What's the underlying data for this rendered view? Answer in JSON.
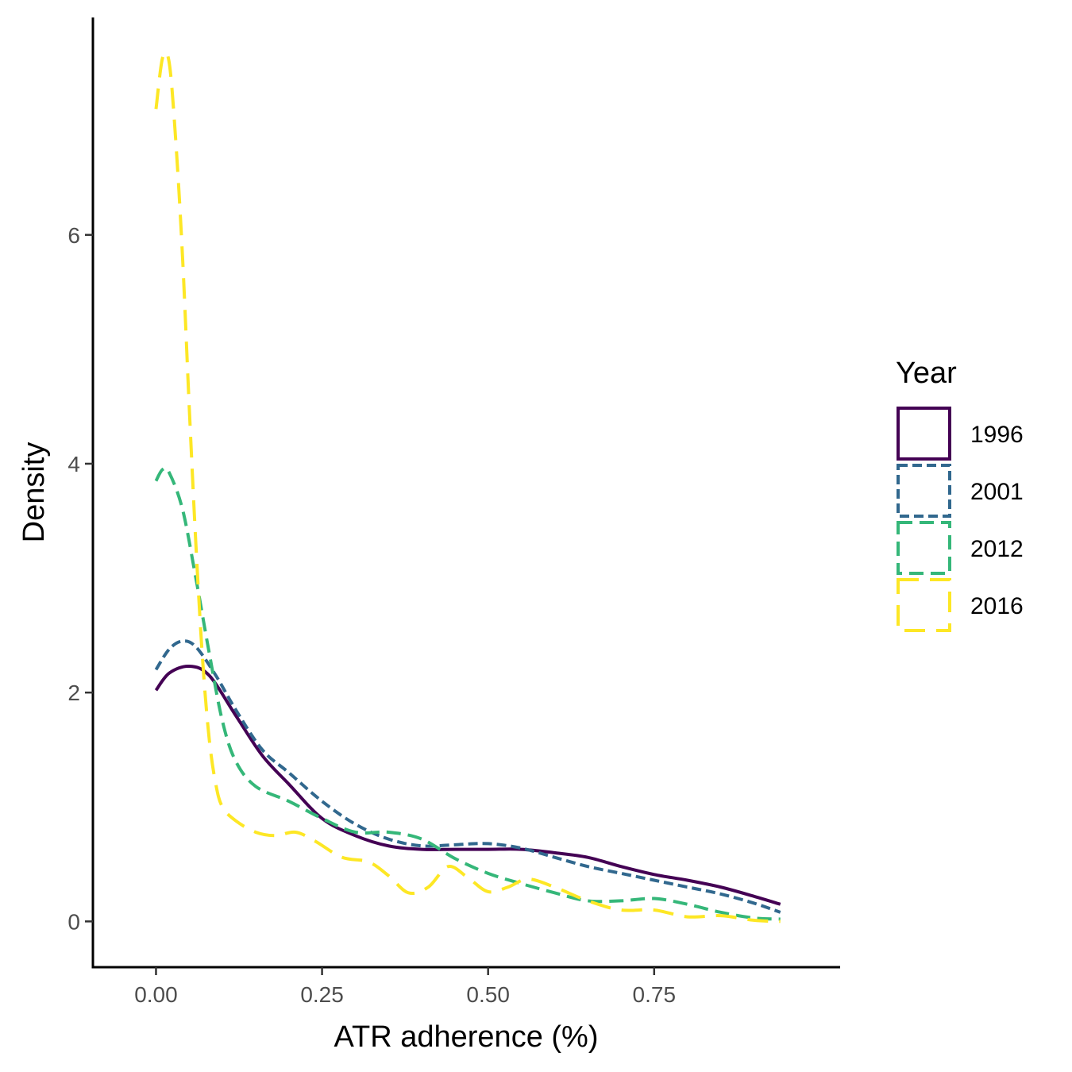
{
  "chart_data": {
    "type": "line",
    "subtype": "density",
    "title": "",
    "xlabel": "ATR adherence (%)",
    "ylabel": "Density",
    "xlim": [
      -0.095,
      1.03
    ],
    "ylim": [
      -0.4,
      7.9
    ],
    "x_ticks": [
      0.0,
      0.25,
      0.5,
      0.75
    ],
    "x_tick_labels": [
      "0.00",
      "0.25",
      "0.50",
      "0.75"
    ],
    "y_ticks": [
      0,
      2,
      4,
      6
    ],
    "y_tick_labels": [
      "0",
      "2",
      "4",
      "6"
    ],
    "grid": false,
    "legend": {
      "title": "Year",
      "position": "right"
    },
    "series": [
      {
        "name": "1996",
        "color": "#440154",
        "dash": "solid",
        "x": [
          0.0,
          0.02,
          0.05,
          0.08,
          0.12,
          0.16,
          0.2,
          0.25,
          0.3,
          0.35,
          0.4,
          0.45,
          0.5,
          0.55,
          0.6,
          0.65,
          0.7,
          0.75,
          0.8,
          0.85,
          0.9,
          0.94
        ],
        "y": [
          2.02,
          2.17,
          2.23,
          2.15,
          1.8,
          1.45,
          1.2,
          0.9,
          0.75,
          0.66,
          0.63,
          0.63,
          0.63,
          0.63,
          0.6,
          0.56,
          0.48,
          0.41,
          0.36,
          0.3,
          0.22,
          0.15
        ]
      },
      {
        "name": "2001",
        "color": "#31688E",
        "dash": "short-dash",
        "x": [
          0.0,
          0.02,
          0.04,
          0.06,
          0.09,
          0.12,
          0.16,
          0.2,
          0.25,
          0.3,
          0.35,
          0.4,
          0.45,
          0.5,
          0.55,
          0.6,
          0.65,
          0.7,
          0.75,
          0.8,
          0.85,
          0.9,
          0.94
        ],
        "y": [
          2.2,
          2.38,
          2.45,
          2.4,
          2.15,
          1.85,
          1.5,
          1.3,
          1.05,
          0.85,
          0.72,
          0.66,
          0.67,
          0.68,
          0.64,
          0.56,
          0.48,
          0.42,
          0.36,
          0.3,
          0.24,
          0.16,
          0.08
        ]
      },
      {
        "name": "2012",
        "color": "#35B779",
        "dash": "medium-dash",
        "x": [
          0.0,
          0.01,
          0.02,
          0.04,
          0.06,
          0.08,
          0.1,
          0.12,
          0.15,
          0.2,
          0.25,
          0.3,
          0.35,
          0.4,
          0.45,
          0.5,
          0.55,
          0.6,
          0.65,
          0.7,
          0.75,
          0.8,
          0.85,
          0.9,
          0.94
        ],
        "y": [
          3.85,
          3.95,
          3.92,
          3.6,
          3.0,
          2.35,
          1.75,
          1.4,
          1.18,
          1.05,
          0.9,
          0.78,
          0.78,
          0.72,
          0.55,
          0.42,
          0.33,
          0.25,
          0.18,
          0.18,
          0.2,
          0.15,
          0.08,
          0.03,
          0.02
        ]
      },
      {
        "name": "2016",
        "color": "#FDE725",
        "dash": "long-dash",
        "x": [
          0.0,
          0.01,
          0.02,
          0.03,
          0.04,
          0.05,
          0.06,
          0.07,
          0.08,
          0.09,
          0.1,
          0.12,
          0.15,
          0.18,
          0.21,
          0.24,
          0.28,
          0.32,
          0.35,
          0.38,
          0.41,
          0.44,
          0.47,
          0.5,
          0.53,
          0.56,
          0.6,
          0.65,
          0.7,
          0.75,
          0.8,
          0.85,
          0.9,
          0.94
        ],
        "y": [
          7.1,
          7.55,
          7.5,
          6.8,
          5.8,
          4.5,
          3.3,
          2.3,
          1.6,
          1.2,
          1.0,
          0.88,
          0.78,
          0.75,
          0.78,
          0.7,
          0.56,
          0.52,
          0.4,
          0.25,
          0.3,
          0.48,
          0.38,
          0.26,
          0.3,
          0.37,
          0.3,
          0.18,
          0.1,
          0.1,
          0.04,
          0.05,
          0.01,
          0.0
        ]
      }
    ]
  }
}
